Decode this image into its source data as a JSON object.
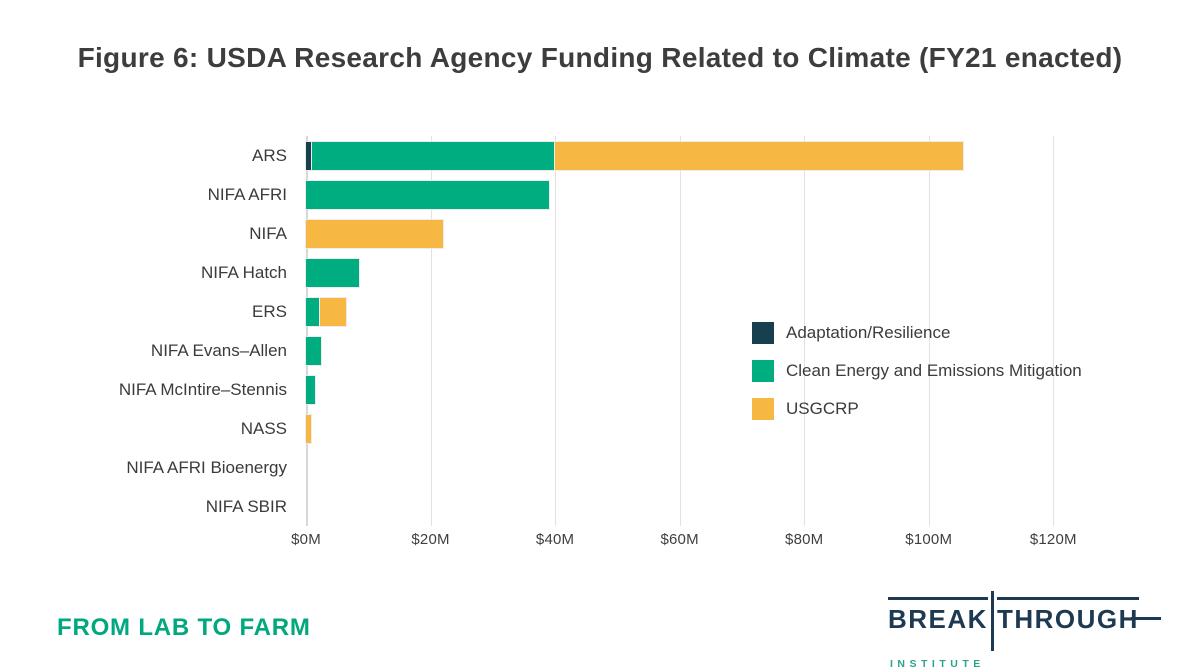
{
  "header": {
    "title": "Figure 6: USDA Research Agency Funding Related to Climate (FY21 enacted)"
  },
  "chart_data": {
    "type": "bar",
    "orientation": "horizontal",
    "stacked": true,
    "title": "Figure 6: USDA Research Agency Funding Related to Climate (FY21 enacted)",
    "categories": [
      "ARS",
      "NIFA AFRI",
      "NIFA",
      "NIFA Hatch",
      "ERS",
      "NIFA Evans–Allen",
      "NIFA McIntire–Stennis",
      "NASS",
      "NIFA AFRI Bioenergy",
      "NIFA SBIR"
    ],
    "series": [
      {
        "name": "Adaptation/Resilience",
        "color": "#17404F",
        "values": [
          1.0,
          0,
          0,
          0,
          0,
          0,
          0,
          0,
          0,
          0
        ]
      },
      {
        "name": "Clean Energy and Emissions Mitigation",
        "color": "#00AD80",
        "values": [
          39.0,
          39.0,
          0,
          8.5,
          2.3,
          2.4,
          1.5,
          0,
          0,
          0
        ]
      },
      {
        "name": "USGCRP",
        "color": "#F7B843",
        "values": [
          65.5,
          0,
          22.0,
          0,
          4.2,
          0,
          0,
          0.8,
          0,
          0
        ]
      }
    ],
    "totals": [
      105.5,
      39.0,
      22.0,
      8.5,
      6.5,
      2.4,
      1.5,
      0.8,
      0,
      0
    ],
    "x_tick_labels": [
      "$0M",
      "$20M",
      "$40M",
      "$60M",
      "$80M",
      "$100M",
      "$120M"
    ],
    "x_tick_values": [
      0,
      20,
      40,
      60,
      80,
      100,
      120
    ],
    "xlim": [
      0,
      127.5
    ],
    "grid": true,
    "legend_position": "inside-right"
  },
  "legend": {
    "items": [
      {
        "label": "Adaptation/Resilience",
        "color": "#17404F"
      },
      {
        "label": "Clean Energy and Emissions Mitigation",
        "color": "#00AD80"
      },
      {
        "label": "USGCRP",
        "color": "#F7B843"
      }
    ]
  },
  "footer": {
    "tagline": "FROM LAB TO FARM",
    "logo": {
      "primary": "BREAKTHROUGH",
      "secondary": "INSTITUTE",
      "word_pre": "BREAK",
      "word_post": "THROUGH"
    }
  },
  "colors": {
    "background": "#FFFFFF",
    "title_text": "#3D3D3D",
    "axis_text": "#3F3F3F",
    "label_text": "#3B3B3B",
    "gridline": "#E2E2E2",
    "tagline_green": "#00A87E",
    "logo_navy": "#1E3A52",
    "logo_teal": "#2AA58C"
  }
}
